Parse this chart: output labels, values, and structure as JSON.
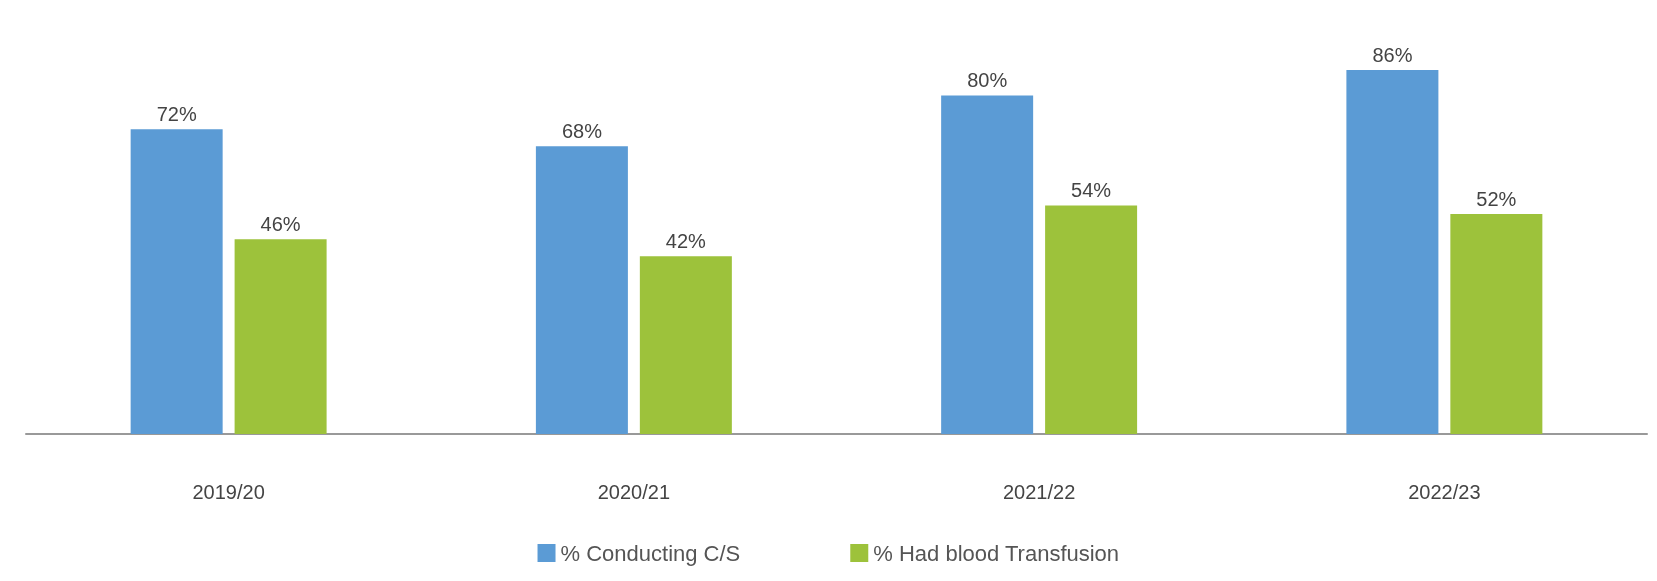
{
  "chart_data": {
    "type": "bar",
    "categories": [
      "2019/20",
      "2020/21",
      "2021/22",
      "2022/23"
    ],
    "series": [
      {
        "name": "% Conducting C/S",
        "color": "#5b9bd5",
        "values": [
          72,
          68,
          80,
          86
        ],
        "value_labels": [
          "72%",
          "68%",
          "80%",
          "86%"
        ]
      },
      {
        "name": "% Had blood Transfusion",
        "color": "#9dc23b",
        "values": [
          46,
          42,
          54,
          52
        ],
        "value_labels": [
          "46%",
          "42%",
          "54%",
          "52%"
        ]
      }
    ],
    "legend": "bottom"
  }
}
